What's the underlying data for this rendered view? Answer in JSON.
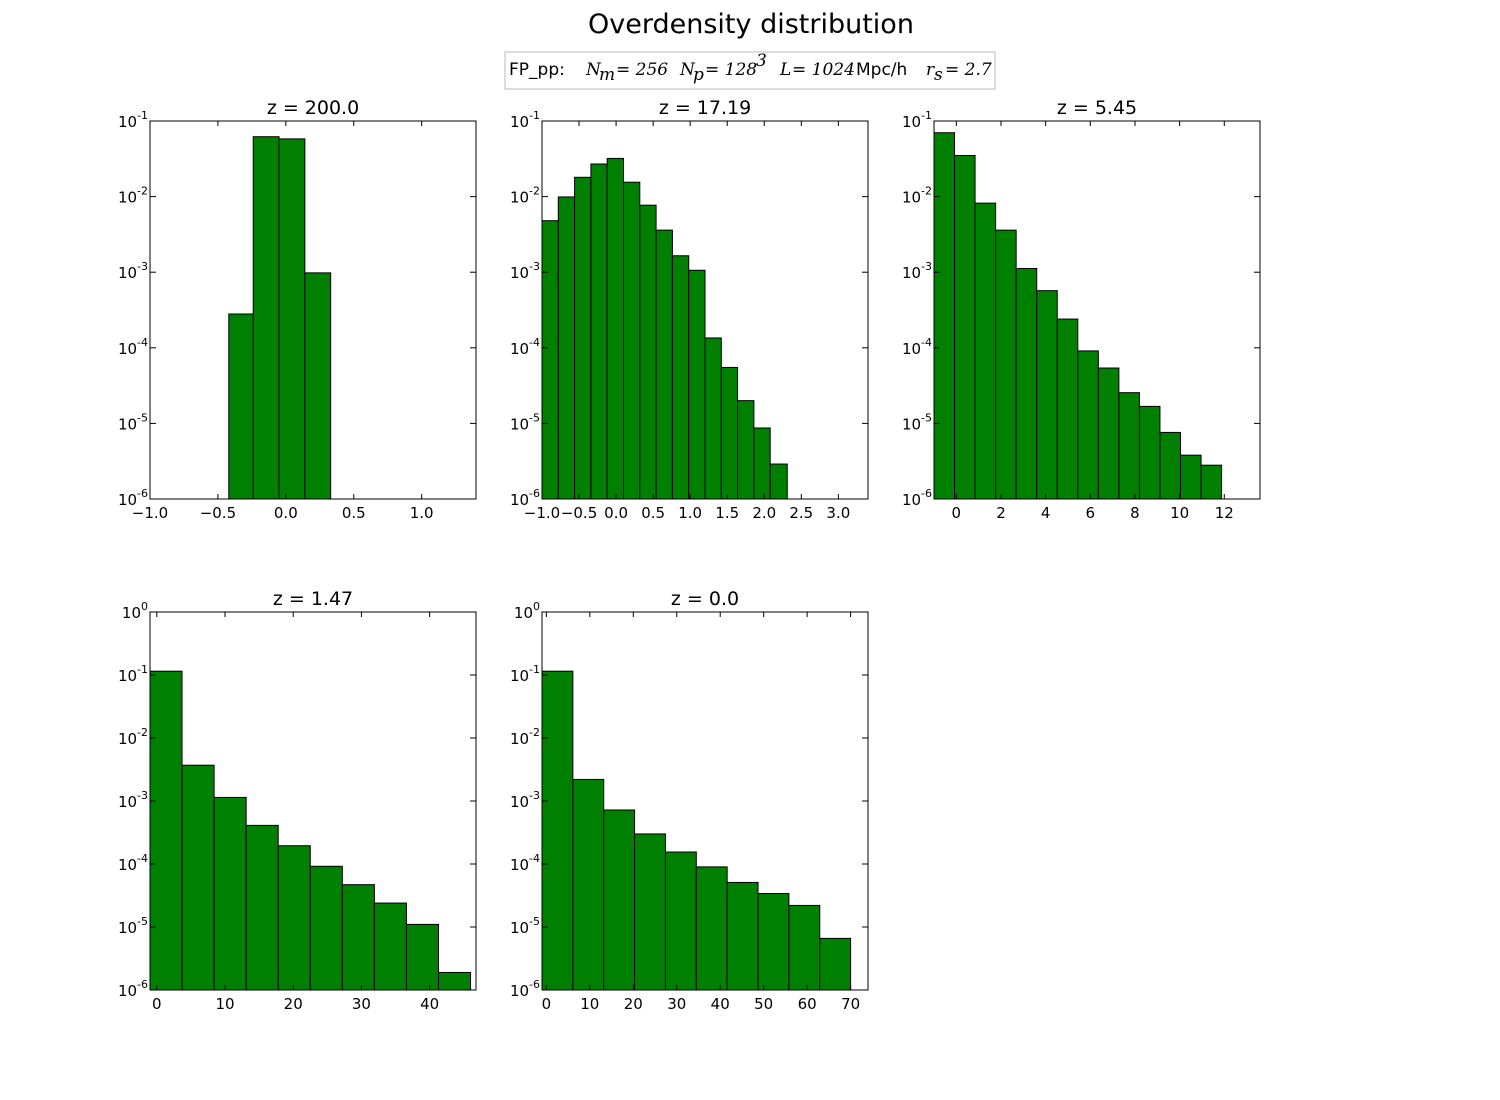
{
  "figure": {
    "title": "Overdensity distribution",
    "bar_color": "#008000",
    "bar_edge": "#000000",
    "legend": {
      "prefix": "FP_pp:",
      "nm": "N_m = 256",
      "np": "N_p = 128^3",
      "l": "L = 1024",
      "unit": "Mpc/h",
      "rs": "r_s = 2.7"
    }
  },
  "chart_data": [
    {
      "type": "bar",
      "title": "z = 200.0",
      "yscale": "log",
      "ylim": [
        1e-06,
        0.1
      ],
      "xlim": [
        -1.0,
        1.4
      ],
      "xticks": [
        "−1.0",
        "−0.5",
        "0.0",
        "0.5",
        "1.0"
      ],
      "xtick_values": [
        -1.0,
        -0.5,
        0.0,
        0.5,
        1.0
      ],
      "yticks": [
        -6,
        -5,
        -4,
        -3,
        -2,
        -1
      ],
      "bin_edges": [
        -0.42,
        -0.24,
        -0.05,
        0.14,
        0.33
      ],
      "values": [
        0.00028,
        0.062,
        0.058,
        0.00098
      ]
    },
    {
      "type": "bar",
      "title": "z = 17.19",
      "yscale": "log",
      "ylim": [
        1e-06,
        0.1
      ],
      "xlim": [
        -1.0,
        3.4
      ],
      "xticks": [
        "−1.0",
        "−0.5",
        "0.0",
        "0.5",
        "1.0",
        "1.5",
        "2.0",
        "2.5",
        "3.0"
      ],
      "xtick_values": [
        -1.0,
        -0.5,
        0.0,
        0.5,
        1.0,
        1.5,
        2.0,
        2.5,
        3.0
      ],
      "yticks": [
        -6,
        -5,
        -4,
        -3,
        -2,
        -1
      ],
      "bin_edges": [
        -1.0,
        -0.78,
        -0.56,
        -0.34,
        -0.12,
        0.1,
        0.32,
        0.54,
        0.76,
        0.98,
        1.2,
        1.42,
        1.64,
        1.86,
        2.08,
        2.31
      ],
      "values": [
        0.0048,
        0.0099,
        0.018,
        0.027,
        0.032,
        0.0155,
        0.0077,
        0.0036,
        0.00165,
        0.00106,
        0.000135,
        5.5e-05,
        2e-05,
        8.7e-06,
        2.9e-06
      ]
    },
    {
      "type": "bar",
      "title": "z = 5.45",
      "yscale": "log",
      "ylim": [
        1e-06,
        0.1
      ],
      "xlim": [
        -1.0,
        13.6
      ],
      "xticks": [
        "0",
        "2",
        "4",
        "6",
        "8",
        "10",
        "12"
      ],
      "xtick_values": [
        0,
        2,
        4,
        6,
        8,
        10,
        12
      ],
      "yticks": [
        -6,
        -5,
        -4,
        -3,
        -2,
        -1
      ],
      "bin_edges": [
        -1.0,
        -0.08,
        0.84,
        1.76,
        2.68,
        3.6,
        4.52,
        5.44,
        6.36,
        7.28,
        8.2,
        9.12,
        10.04,
        10.96,
        11.88
      ],
      "values": [
        0.07,
        0.035,
        0.0082,
        0.0036,
        0.00112,
        0.00057,
        0.00024,
        9.1e-05,
        5.4e-05,
        2.55e-05,
        1.68e-05,
        7.6e-06,
        3.8e-06,
        2.8e-06
      ]
    },
    {
      "type": "bar",
      "title": "z = 1.47",
      "yscale": "log",
      "ylim": [
        1e-06,
        1
      ],
      "xlim": [
        -1.0,
        46.8
      ],
      "xticks": [
        "0",
        "10",
        "20",
        "30",
        "40"
      ],
      "xtick_values": [
        0,
        10,
        20,
        30,
        40
      ],
      "yticks": [
        -6,
        -5,
        -4,
        -3,
        -2,
        -1,
        0
      ],
      "bin_edges": [
        -1.0,
        3.7,
        8.4,
        13.1,
        17.8,
        22.5,
        27.2,
        31.9,
        36.6,
        41.3,
        46.0
      ],
      "values": [
        0.115,
        0.0037,
        0.00114,
        0.00041,
        0.000195,
        9.2e-05,
        4.7e-05,
        2.4e-05,
        1.1e-05,
        1.9e-06
      ]
    },
    {
      "type": "bar",
      "title": "z = 0.0",
      "yscale": "log",
      "ylim": [
        1e-06,
        1
      ],
      "xlim": [
        -1.0,
        74.0
      ],
      "xticks": [
        "0",
        "10",
        "20",
        "30",
        "40",
        "50",
        "60",
        "70"
      ],
      "xtick_values": [
        0,
        10,
        20,
        30,
        40,
        50,
        60,
        70
      ],
      "yticks": [
        -6,
        -5,
        -4,
        -3,
        -2,
        -1,
        0
      ],
      "bin_edges": [
        -1.0,
        6.1,
        13.2,
        20.3,
        27.4,
        34.5,
        41.6,
        48.7,
        55.8,
        62.9,
        70.0
      ],
      "values": [
        0.115,
        0.0022,
        0.00072,
        0.0003,
        0.000155,
        9e-05,
        5.1e-05,
        3.4e-05,
        2.2e-05,
        6.6e-06
      ]
    }
  ]
}
